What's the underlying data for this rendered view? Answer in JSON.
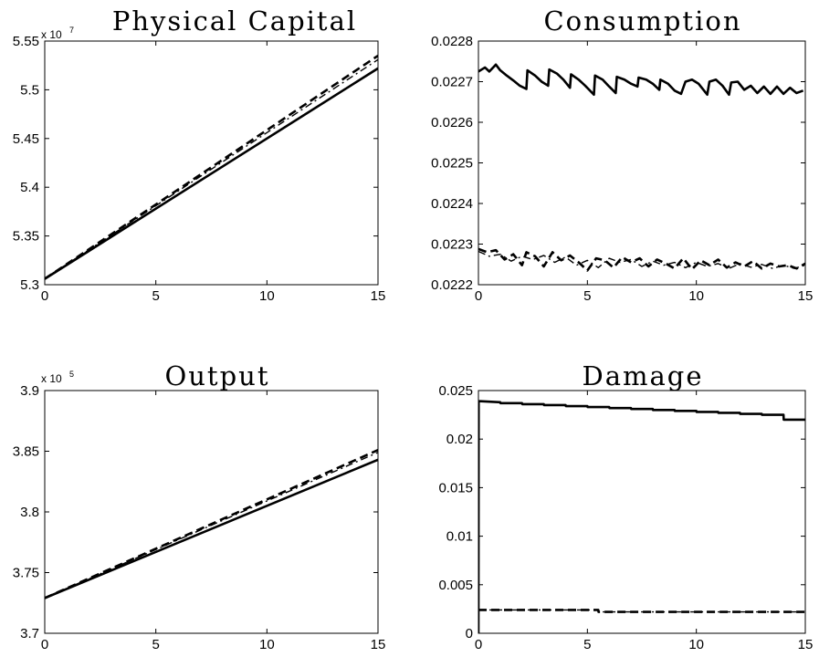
{
  "chart_data": [
    {
      "type": "line",
      "title": "Physical Capital",
      "multiplier": {
        "base": "x 10",
        "exponent": "7"
      },
      "xlim": [
        0,
        15
      ],
      "ylim": [
        5.3,
        5.55
      ],
      "xticks": [
        0,
        5,
        10,
        15
      ],
      "xtick_labels": [
        "0",
        "5",
        "10",
        "15"
      ],
      "yticks": [
        5.3,
        5.35,
        5.4,
        5.45,
        5.5,
        5.55
      ],
      "ytick_labels": [
        "5.3",
        "5.35",
        "5.4",
        "5.45",
        "5.5",
        "5.55"
      ],
      "grid": false,
      "series": [
        {
          "style": "solid",
          "x": [
            0,
            15
          ],
          "y": [
            5.306,
            5.522
          ]
        },
        {
          "style": "dashed",
          "x": [
            0,
            15
          ],
          "y": [
            5.306,
            5.535
          ]
        },
        {
          "style": "dashdot",
          "x": [
            0,
            15
          ],
          "y": [
            5.306,
            5.531
          ]
        }
      ]
    },
    {
      "type": "line",
      "title": "Consumption",
      "xlim": [
        0,
        15
      ],
      "ylim": [
        0.0222,
        0.0228
      ],
      "xticks": [
        0,
        5,
        10,
        15
      ],
      "xtick_labels": [
        "0",
        "5",
        "10",
        "15"
      ],
      "yticks": [
        0.0222,
        0.0223,
        0.0224,
        0.0225,
        0.0226,
        0.0227,
        0.0228
      ],
      "ytick_labels": [
        "0.0222",
        "0.0223",
        "0.0224",
        "0.0225",
        "0.0226",
        "0.0227",
        "0.0228"
      ],
      "grid": false,
      "series": [
        {
          "style": "solid",
          "x": [
            0,
            0.3,
            0.5,
            0.8,
            1.0,
            1.3,
            1.6,
            1.9,
            2.2,
            2.25,
            2.6,
            2.9,
            3.2,
            3.25,
            3.6,
            3.9,
            4.2,
            4.25,
            4.6,
            4.9,
            5.3,
            5.35,
            5.7,
            6.0,
            6.3,
            6.35,
            6.7,
            7.0,
            7.3,
            7.35,
            7.7,
            8.0,
            8.3,
            8.35,
            8.7,
            9.0,
            9.3,
            9.5,
            9.8,
            10.1,
            10.5,
            10.6,
            10.9,
            11.2,
            11.5,
            11.6,
            11.9,
            12.2,
            12.5,
            12.8,
            13.1,
            13.4,
            13.7,
            14.0,
            14.3,
            14.6,
            14.9
          ],
          "y": [
            0.022725,
            0.022735,
            0.022725,
            0.022742,
            0.022728,
            0.022715,
            0.022703,
            0.02269,
            0.022682,
            0.022728,
            0.022715,
            0.0227,
            0.02269,
            0.02273,
            0.02272,
            0.022705,
            0.022685,
            0.022718,
            0.022705,
            0.02269,
            0.022668,
            0.022715,
            0.022705,
            0.022688,
            0.022672,
            0.022712,
            0.022705,
            0.022695,
            0.022688,
            0.02271,
            0.022705,
            0.022695,
            0.02268,
            0.022705,
            0.022695,
            0.022678,
            0.02267,
            0.0227,
            0.022705,
            0.022695,
            0.022668,
            0.0227,
            0.022705,
            0.02269,
            0.022668,
            0.022698,
            0.0227,
            0.02268,
            0.02269,
            0.022672,
            0.022688,
            0.02267,
            0.022688,
            0.02267,
            0.022685,
            0.022672,
            0.022678
          ]
        },
        {
          "style": "dashed",
          "x": [
            0,
            0.4,
            0.8,
            1.2,
            1.6,
            2.0,
            2.2,
            2.6,
            3.0,
            3.4,
            3.8,
            4.2,
            4.6,
            5.0,
            5.4,
            5.8,
            6.2,
            6.6,
            7.0,
            7.4,
            7.8,
            8.2,
            8.6,
            9.0,
            9.4,
            9.8,
            10.2,
            10.6,
            11.0,
            11.4,
            11.8,
            12.2,
            12.6,
            13.0,
            13.4,
            13.8,
            14.2,
            14.6,
            15.0
          ],
          "y": [
            0.022288,
            0.02228,
            0.022285,
            0.022262,
            0.022275,
            0.022248,
            0.02228,
            0.02227,
            0.022245,
            0.02228,
            0.02226,
            0.022272,
            0.022255,
            0.022235,
            0.022265,
            0.02226,
            0.022242,
            0.022268,
            0.022255,
            0.022265,
            0.022245,
            0.022262,
            0.022252,
            0.02224,
            0.022265,
            0.022238,
            0.02226,
            0.022248,
            0.022262,
            0.022242,
            0.022255,
            0.022245,
            0.022258,
            0.02224,
            0.022252,
            0.022245,
            0.022248,
            0.02224,
            0.022252
          ]
        },
        {
          "style": "dashdot",
          "x": [
            0,
            0.5,
            1.0,
            1.5,
            2.0,
            2.5,
            3.0,
            3.5,
            4.0,
            4.5,
            5.0,
            5.5,
            6.0,
            6.5,
            7.0,
            7.5,
            8.0,
            8.5,
            9.0,
            9.5,
            10.0,
            10.5,
            11.0,
            11.5,
            12.0,
            12.5,
            13.0,
            13.5,
            14.0,
            14.5,
            15.0
          ],
          "y": [
            0.022282,
            0.02227,
            0.022275,
            0.022258,
            0.02227,
            0.022262,
            0.022272,
            0.022255,
            0.022268,
            0.022248,
            0.02226,
            0.022242,
            0.022265,
            0.022255,
            0.022262,
            0.022245,
            0.022258,
            0.022248,
            0.022255,
            0.022242,
            0.022255,
            0.022245,
            0.022252,
            0.02224,
            0.022252,
            0.022243,
            0.02225,
            0.02224,
            0.022248,
            0.02224,
            0.022248
          ]
        }
      ]
    },
    {
      "type": "line",
      "title": "Output",
      "multiplier": {
        "base": "x 10",
        "exponent": "5"
      },
      "xlim": [
        0,
        15
      ],
      "ylim": [
        3.7,
        3.9
      ],
      "xticks": [
        0,
        5,
        10,
        15
      ],
      "xtick_labels": [
        "0",
        "5",
        "10",
        "15"
      ],
      "yticks": [
        3.7,
        3.75,
        3.8,
        3.85,
        3.9
      ],
      "ytick_labels": [
        "3.7",
        "3.75",
        "3.8",
        "3.85",
        "3.9"
      ],
      "grid": false,
      "series": [
        {
          "style": "solid",
          "x": [
            0,
            15
          ],
          "y": [
            3.729,
            3.843
          ]
        },
        {
          "style": "dashed",
          "x": [
            0,
            15
          ],
          "y": [
            3.729,
            3.851
          ]
        },
        {
          "style": "dashdot",
          "x": [
            0,
            15
          ],
          "y": [
            3.729,
            3.849
          ]
        }
      ]
    },
    {
      "type": "line",
      "title": "Damage",
      "xlim": [
        0,
        15
      ],
      "ylim": [
        0,
        0.025
      ],
      "xticks": [
        0,
        5,
        10,
        15
      ],
      "xtick_labels": [
        "0",
        "5",
        "10",
        "15"
      ],
      "yticks": [
        0,
        0.005,
        0.01,
        0.015,
        0.02,
        0.025
      ],
      "ytick_labels": [
        "0",
        "0.005",
        "0.01",
        "0.015",
        "0.02",
        "0.025"
      ],
      "grid": false,
      "series": [
        {
          "style": "solid",
          "x": [
            0,
            0.01,
            0.1,
            1,
            1.01,
            2,
            2.01,
            3,
            3.01,
            4,
            4.01,
            5,
            5.01,
            6,
            6.01,
            7,
            7.01,
            8,
            8.01,
            9,
            9.01,
            10,
            10.01,
            11,
            11.01,
            12,
            12.01,
            13,
            13.01,
            14,
            14.01,
            15
          ],
          "y": [
            0,
            0.0239,
            0.0239,
            0.0238,
            0.0237,
            0.0237,
            0.0236,
            0.0236,
            0.0235,
            0.0235,
            0.0234,
            0.0234,
            0.0233,
            0.0233,
            0.0232,
            0.0232,
            0.0231,
            0.0231,
            0.023,
            0.023,
            0.0229,
            0.0229,
            0.0228,
            0.0228,
            0.0227,
            0.0227,
            0.0226,
            0.0226,
            0.0225,
            0.0225,
            0.022,
            0.022
          ]
        },
        {
          "style": "dashed",
          "x": [
            0,
            5.5,
            5.51,
            15
          ],
          "y": [
            0.0024,
            0.0024,
            0.0022,
            0.0022
          ]
        },
        {
          "style": "dashdot",
          "x": [
            0,
            5.5,
            5.51,
            15
          ],
          "y": [
            0.0024,
            0.0024,
            0.0022,
            0.0022
          ]
        }
      ]
    }
  ]
}
